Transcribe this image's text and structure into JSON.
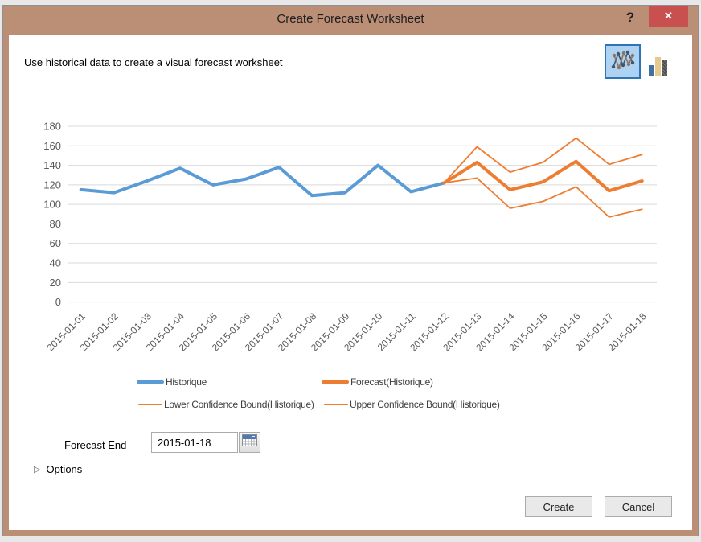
{
  "dialog": {
    "title": "Create Forecast Worksheet",
    "description": "Use historical data to create a visual forecast worksheet",
    "help_glyph": "?",
    "close_glyph": "✕"
  },
  "colors": {
    "titlebar": "#BB8E76",
    "close_button": "#C8504E",
    "historical_line": "#5B9BD5",
    "forecast_line": "#ED7D31",
    "gridline": "#D9D9D9",
    "axis_text": "#595959"
  },
  "chart_data": {
    "type": "line",
    "categories": [
      "2015-01-01",
      "2015-01-02",
      "2015-01-03",
      "2015-01-04",
      "2015-01-05",
      "2015-01-06",
      "2015-01-07",
      "2015-01-08",
      "2015-01-09",
      "2015-01-10",
      "2015-01-11",
      "2015-01-12",
      "2015-01-13",
      "2015-01-14",
      "2015-01-15",
      "2015-01-16",
      "2015-01-17",
      "2015-01-18"
    ],
    "series": [
      {
        "name": "Historique",
        "color": "#5B9BD5",
        "width": 4,
        "values": [
          115,
          112,
          124,
          137,
          120,
          126,
          138,
          109,
          112,
          140,
          113,
          122,
          null,
          null,
          null,
          null,
          null,
          null
        ]
      },
      {
        "name": "Forecast(Historique)",
        "color": "#ED7D31",
        "width": 4,
        "values": [
          null,
          null,
          null,
          null,
          null,
          null,
          null,
          null,
          null,
          null,
          null,
          122,
          143,
          115,
          123,
          144,
          114,
          124
        ]
      },
      {
        "name": "Lower Confidence Bound(Historique)",
        "color": "#ED7D31",
        "width": 1.8,
        "values": [
          null,
          null,
          null,
          null,
          null,
          null,
          null,
          null,
          null,
          null,
          null,
          122,
          127,
          96,
          103,
          118,
          87,
          95
        ]
      },
      {
        "name": "Upper Confidence Bound(Historique)",
        "color": "#ED7D31",
        "width": 1.8,
        "values": [
          null,
          null,
          null,
          null,
          null,
          null,
          null,
          null,
          null,
          null,
          null,
          122,
          159,
          133,
          143,
          168,
          141,
          151
        ]
      }
    ],
    "ylim": [
      0,
      180
    ],
    "ytick_step": 20,
    "grid": true,
    "legend_position": "bottom",
    "title": "",
    "xlabel": "",
    "ylabel": ""
  },
  "legend": {
    "items": [
      {
        "label": "Historique"
      },
      {
        "label": "Forecast(Historique)"
      },
      {
        "label": "Lower Confidence Bound(Historique)"
      },
      {
        "label": "Upper Confidence Bound(Historique)"
      }
    ]
  },
  "forecast_end": {
    "label_pre": "Forecast ",
    "label_accesskey": "E",
    "label_post": "nd",
    "value": "2015-01-18"
  },
  "options": {
    "expander_glyph": "▷",
    "label_accesskey": "O",
    "label_post": "ptions"
  },
  "footer": {
    "create_label": "Create",
    "cancel_label": "Cancel"
  }
}
